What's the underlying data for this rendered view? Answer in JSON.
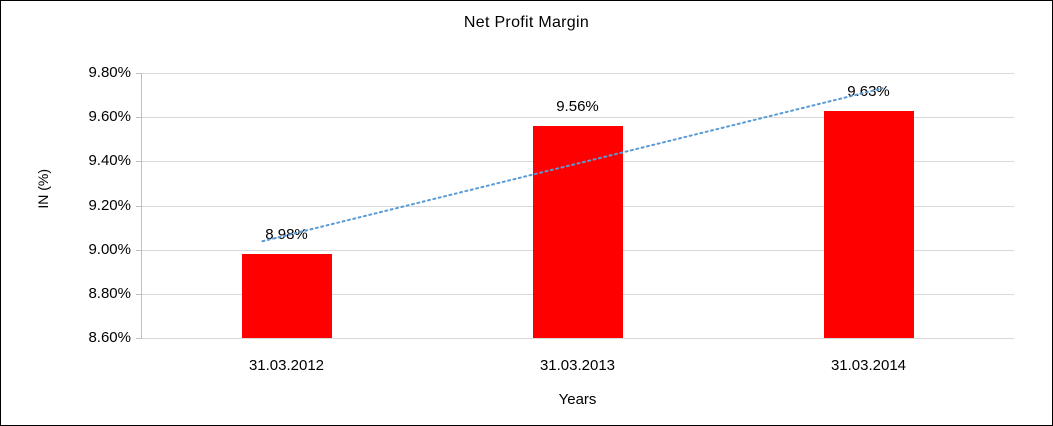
{
  "chart_data": {
    "type": "bar",
    "title": "Net Profit Margin",
    "xlabel": "Years",
    "ylabel": "IN (%)",
    "categories": [
      "31.03.2012",
      "31.03.2013",
      "31.03.2014"
    ],
    "values": [
      8.98,
      9.56,
      9.63
    ],
    "data_labels": [
      "8.98%",
      "9.56%",
      "9.63%"
    ],
    "ylim": [
      8.6,
      9.8
    ],
    "ytick_step": 0.2,
    "ytick_labels": [
      "8.60%",
      "8.80%",
      "9.00%",
      "9.20%",
      "9.40%",
      "9.60%",
      "9.80%"
    ],
    "grid": true,
    "legend": "none",
    "bar_color": "#ff0000",
    "trendline": {
      "type": "linear",
      "style": "dotted",
      "color": "#5b9bd5",
      "endpoints": [
        9.065,
        9.715
      ]
    }
  }
}
